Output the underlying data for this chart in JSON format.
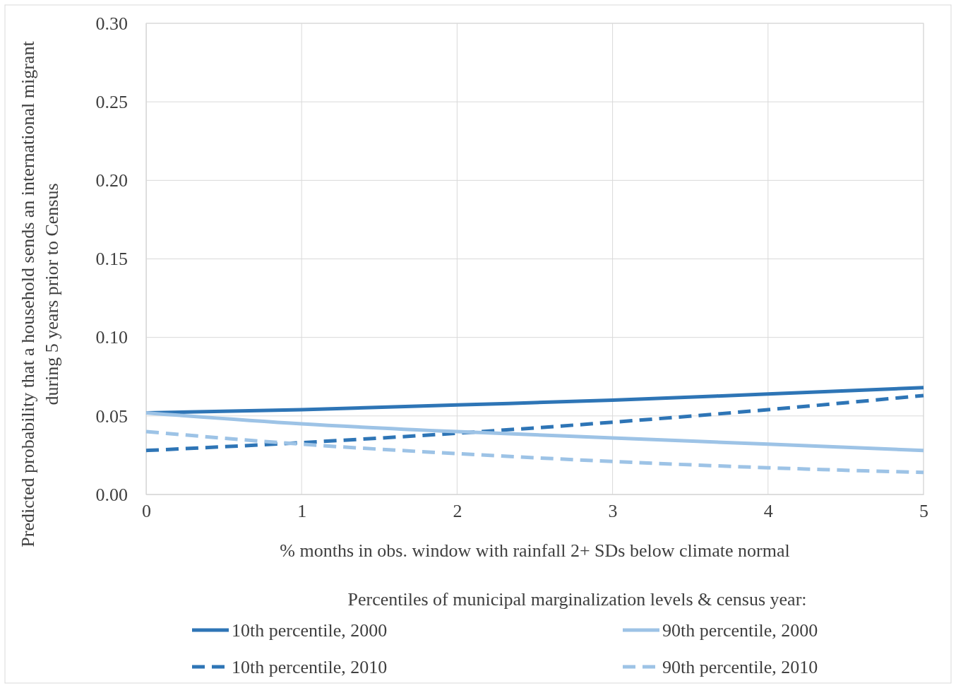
{
  "chart_data": {
    "type": "line",
    "xlabel": "% months in obs. window with rainfall 2+ SDs below climate normal",
    "ylabel": "Predicted probability that a household sends an international migrant during 5 years prior to Census",
    "legend_title": "Percentiles of municipal marginalization levels & census year:",
    "x": [
      0,
      1,
      2,
      3,
      4,
      5
    ],
    "xlim": [
      0,
      5
    ],
    "xticks": [
      0,
      1,
      2,
      3,
      4,
      5
    ],
    "ylim": [
      0,
      0.3
    ],
    "yticks": [
      {
        "value": 0,
        "label": "0.00"
      },
      {
        "value": 0.05,
        "label": "0.05"
      },
      {
        "value": 0.1,
        "label": "0.10"
      },
      {
        "value": 0.15,
        "label": "0.15"
      },
      {
        "value": 0.2,
        "label": "0.20"
      },
      {
        "value": 0.25,
        "label": "0.25"
      },
      {
        "value": 0.3,
        "label": "0.30"
      }
    ],
    "grid": true,
    "legend": "bottom",
    "marker": "none",
    "series": [
      {
        "name": "10th percentile, 2000",
        "color": "#2e75b6",
        "line_style": "solid",
        "values": [
          0.052,
          0.054,
          0.057,
          0.06,
          0.064,
          0.068
        ]
      },
      {
        "name": "10th percentile, 2010",
        "color": "#2e75b6",
        "line_style": "dashed",
        "values": [
          0.028,
          0.033,
          0.039,
          0.046,
          0.054,
          0.063
        ]
      },
      {
        "name": "90th percentile, 2000",
        "color": "#9dc3e6",
        "line_style": "solid",
        "values": [
          0.052,
          0.045,
          0.04,
          0.036,
          0.032,
          0.028
        ]
      },
      {
        "name": "90th percentile, 2010",
        "color": "#9dc3e6",
        "line_style": "dashed",
        "values": [
          0.04,
          0.032,
          0.026,
          0.021,
          0.017,
          0.014
        ]
      }
    ]
  }
}
